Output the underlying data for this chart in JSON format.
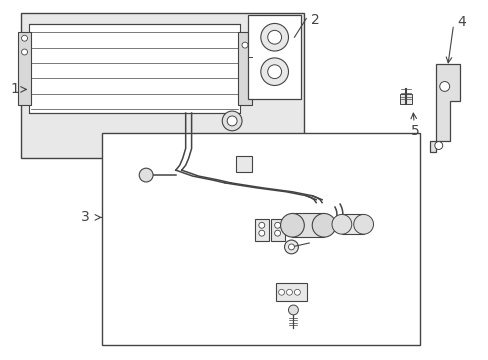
{
  "bg": "#ffffff",
  "dark": "#444444",
  "gray_fill": "#e8e8e8",
  "white": "#ffffff",
  "light_gray": "#cccccc",
  "fig_w": 4.89,
  "fig_h": 3.6,
  "dpi": 100
}
